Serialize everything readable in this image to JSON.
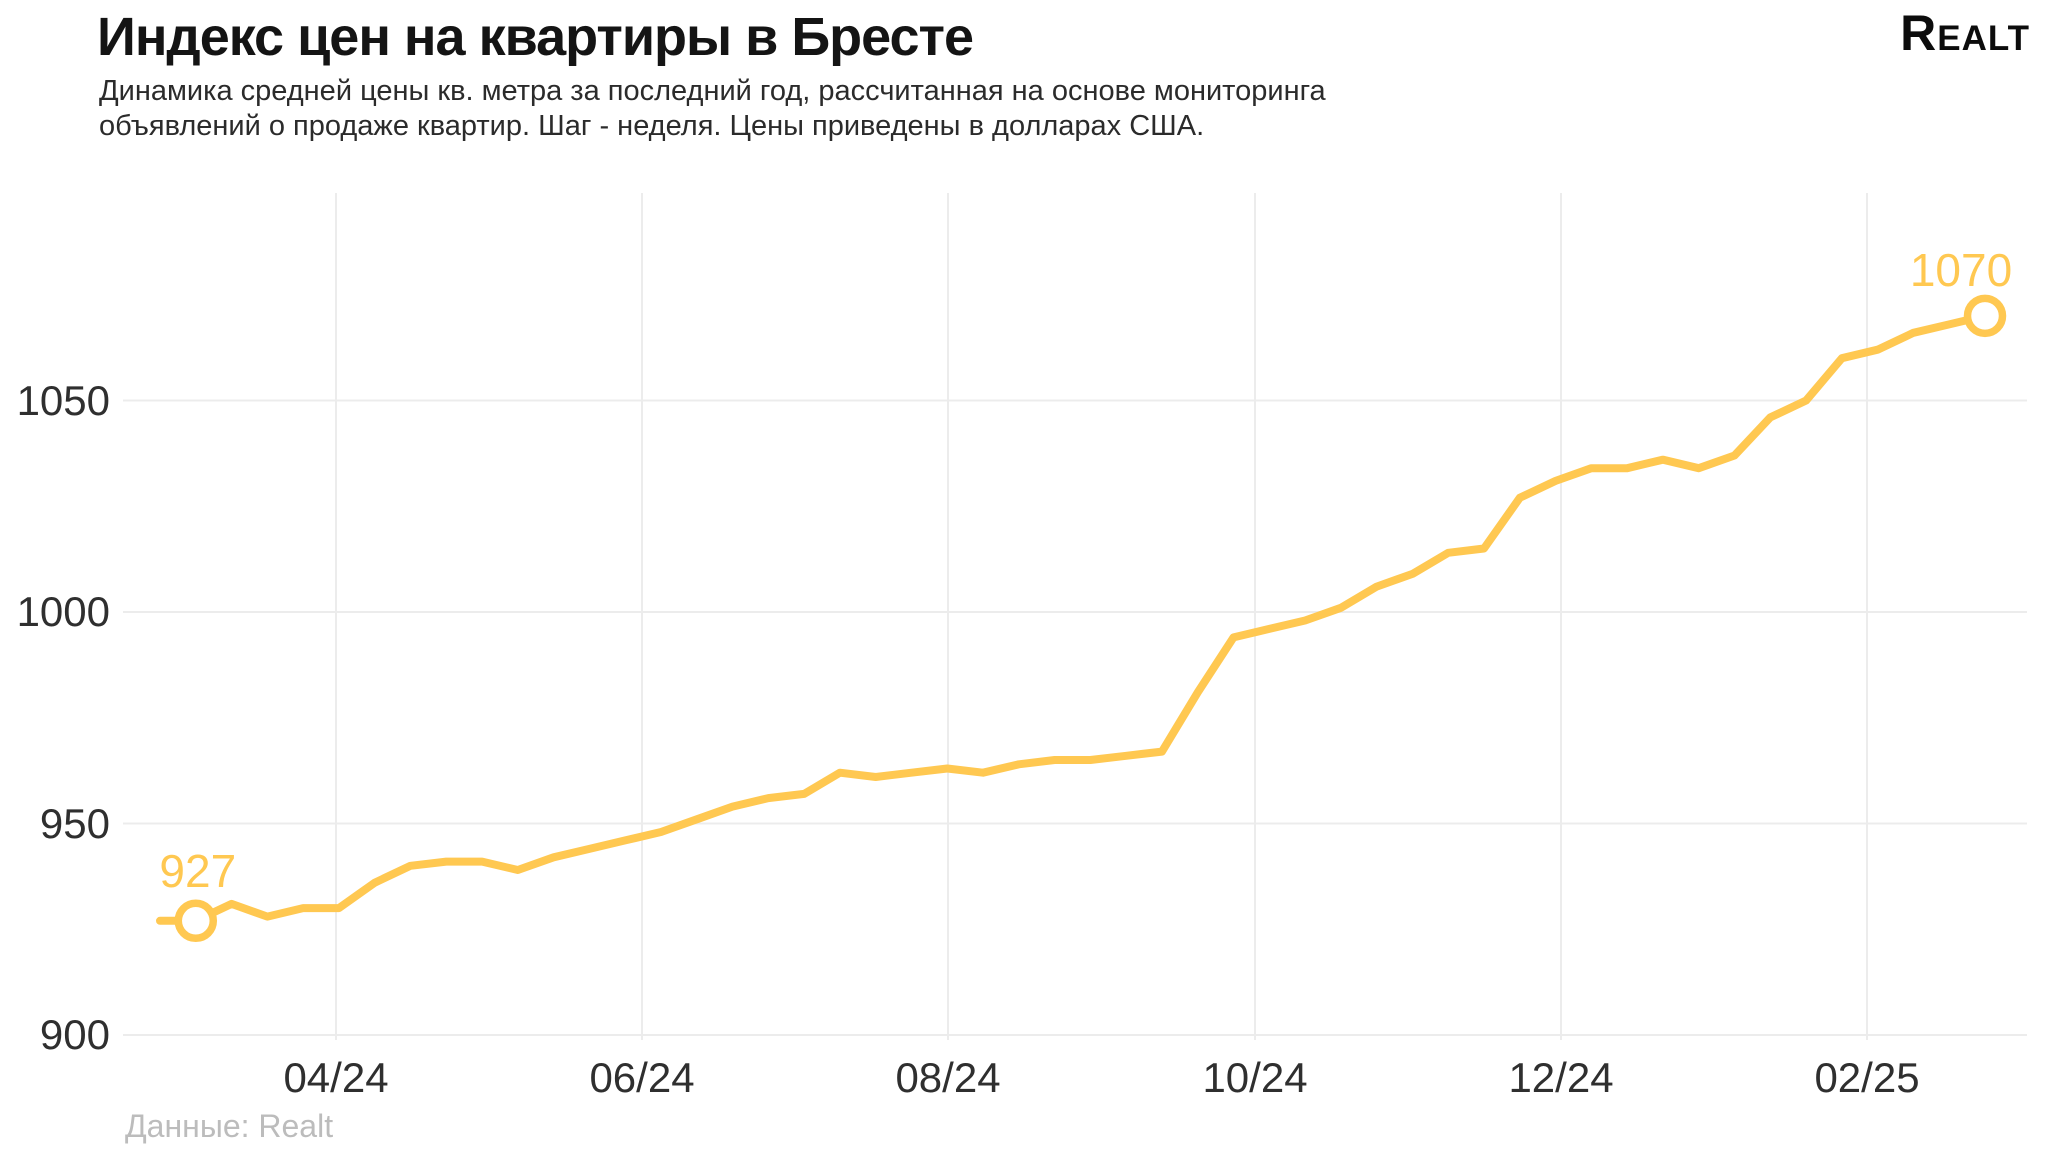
{
  "header": {
    "title": "Индекс цен на квартиры в Бресте",
    "subtitle_lines": [
      "Динамика средней цены кв. метра за последний год, рассчитанная на основе мониторинга",
      "объявлений о продаже квартир. Шаг - неделя. Цены приведены в долларах США."
    ],
    "logo": "Realt"
  },
  "footer": {
    "source": "Данные: Realt"
  },
  "colors": {
    "line": "#FFC851",
    "marker_fill": "#FFFFFF",
    "grid": "#ECECEC",
    "tick_text": "#2F2F2F",
    "value_label": "#FFC851"
  },
  "chart_data": {
    "type": "line",
    "title": "Индекс цен на квартиры в Бресте",
    "x_step": "week",
    "x_tick_labels": [
      "04/24",
      "06/24",
      "08/24",
      "10/24",
      "12/24",
      "02/25"
    ],
    "y_ticks": [
      900,
      950,
      1000,
      1050
    ],
    "ylim": [
      893,
      1078
    ],
    "grid": true,
    "legend_position": "none",
    "series_unit": "USD per sq. m",
    "values": [
      927,
      927,
      931,
      928,
      930,
      930,
      936,
      940,
      941,
      941,
      939,
      942,
      944,
      946,
      948,
      951,
      954,
      956,
      957,
      962,
      961,
      962,
      963,
      962,
      964,
      965,
      965,
      966,
      967,
      981,
      994,
      996,
      998,
      1001,
      1006,
      1009,
      1014,
      1015,
      1027,
      1031,
      1034,
      1034,
      1036,
      1034,
      1037,
      1046,
      1050,
      1060,
      1062,
      1066,
      1068,
      1070
    ],
    "start_label": "927",
    "end_label": "1070"
  }
}
